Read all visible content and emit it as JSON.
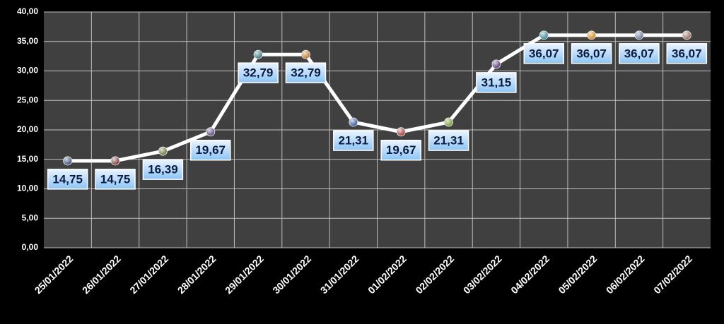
{
  "chart_data": {
    "type": "line",
    "categories": [
      "25/01/2022",
      "26/01/2022",
      "27/01/2022",
      "28/01/2022",
      "29/01/2022",
      "30/01/2022",
      "31/01/2022",
      "01/02/2022",
      "02/02/2022",
      "03/02/2022",
      "04/02/2022",
      "05/02/2022",
      "06/02/2022",
      "07/02/2022"
    ],
    "values": [
      14.75,
      14.75,
      16.39,
      19.67,
      32.79,
      32.79,
      21.31,
      19.67,
      21.31,
      31.15,
      36.07,
      36.07,
      36.07,
      36.07
    ],
    "value_labels": [
      "14,75",
      "14,75",
      "16,39",
      "19,67",
      "32,79",
      "32,79",
      "21,31",
      "19,67",
      "21,31",
      "31,15",
      "36,07",
      "36,07",
      "36,07",
      "36,07"
    ],
    "color": "#ffffff",
    "point_colors": [
      "#3a4f7a",
      "#7a3a3a",
      "#6b7a3a",
      "#5a4a7a",
      "#3a7a7a",
      "#c07a30",
      "#3a5aa0",
      "#a03a3a",
      "#7a9a3a",
      "#5a3a7a",
      "#3a8a9a",
      "#d08a20",
      "#6a7a9a",
      "#9a6a5a"
    ],
    "ylim": [
      0,
      40
    ],
    "yticks": [
      {
        "value": 0,
        "label": "0,00"
      },
      {
        "value": 5,
        "label": "5,00"
      },
      {
        "value": 10,
        "label": "10,00"
      },
      {
        "value": 15,
        "label": "15,00"
      },
      {
        "value": 20,
        "label": "20,00"
      },
      {
        "value": 25,
        "label": "25,00"
      },
      {
        "value": 30,
        "label": "30,00"
      },
      {
        "value": 35,
        "label": "35,00"
      },
      {
        "value": 40,
        "label": "40,00"
      }
    ],
    "grid": true
  }
}
